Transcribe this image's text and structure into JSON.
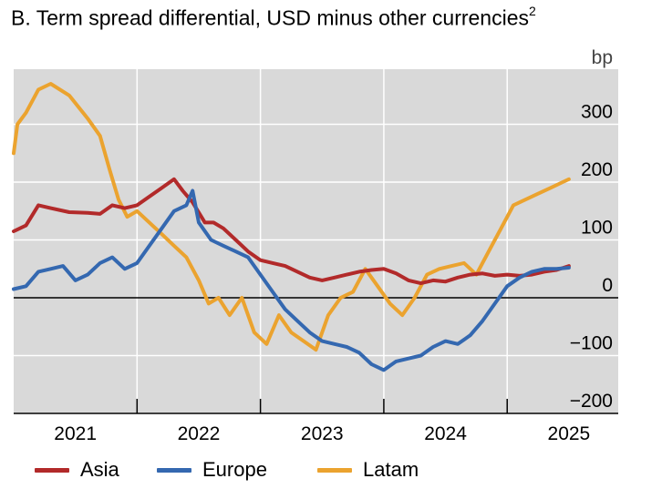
{
  "chart_data": {
    "type": "line",
    "title": "B. Term spread differential, USD minus other currencies",
    "title_superscript": "2",
    "ylabel": "bp",
    "ylim": [
      -200,
      380
    ],
    "yticks": [
      300,
      200,
      100,
      0,
      -100,
      -200
    ],
    "xlim": [
      2020.5,
      2025.4
    ],
    "xticks": [
      2021,
      2022,
      2023,
      2024,
      2025
    ],
    "grid": true,
    "legend_position": "bottom",
    "series": [
      {
        "name": "Asia",
        "color": "#b22a2a",
        "x": [
          2020.5,
          2020.6,
          2020.7,
          2020.8,
          2020.95,
          2021.1,
          2021.2,
          2021.3,
          2021.4,
          2021.5,
          2021.6,
          2021.7,
          2021.8,
          2021.87,
          2021.95,
          2022.05,
          2022.12,
          2022.2,
          2022.3,
          2022.4,
          2022.5,
          2022.6,
          2022.7,
          2022.8,
          2022.9,
          2023.0,
          2023.1,
          2023.2,
          2023.3,
          2023.4,
          2023.5,
          2023.6,
          2023.7,
          2023.8,
          2023.9,
          2024.0,
          2024.1,
          2024.2,
          2024.3,
          2024.4,
          2024.5,
          2024.6,
          2024.7,
          2024.8,
          2024.9,
          2025.0
        ],
        "values": [
          115,
          125,
          160,
          155,
          148,
          147,
          145,
          160,
          155,
          160,
          175,
          190,
          205,
          185,
          165,
          130,
          130,
          120,
          100,
          80,
          65,
          60,
          55,
          45,
          35,
          30,
          35,
          40,
          45,
          48,
          50,
          42,
          30,
          25,
          30,
          28,
          35,
          40,
          42,
          38,
          40,
          38,
          40,
          45,
          48,
          55
        ]
      },
      {
        "name": "Europe",
        "color": "#3468b0",
        "x": [
          2020.5,
          2020.6,
          2020.7,
          2020.8,
          2020.9,
          2021.0,
          2021.1,
          2021.2,
          2021.3,
          2021.4,
          2021.5,
          2021.6,
          2021.7,
          2021.8,
          2021.9,
          2021.95,
          2022.0,
          2022.1,
          2022.2,
          2022.3,
          2022.4,
          2022.5,
          2022.6,
          2022.7,
          2022.8,
          2022.9,
          2023.0,
          2023.1,
          2023.2,
          2023.3,
          2023.4,
          2023.5,
          2023.6,
          2023.7,
          2023.8,
          2023.9,
          2024.0,
          2024.1,
          2024.2,
          2024.3,
          2024.4,
          2024.5,
          2024.6,
          2024.7,
          2024.8,
          2024.9,
          2025.0
        ],
        "values": [
          15,
          20,
          45,
          50,
          55,
          30,
          40,
          60,
          70,
          50,
          60,
          90,
          120,
          150,
          160,
          185,
          130,
          100,
          90,
          80,
          70,
          40,
          10,
          -20,
          -40,
          -60,
          -75,
          -80,
          -85,
          -95,
          -115,
          -125,
          -110,
          -105,
          -100,
          -85,
          -75,
          -80,
          -65,
          -40,
          -10,
          20,
          35,
          45,
          50,
          50,
          52
        ]
      },
      {
        "name": "Latam",
        "color": "#eba32f",
        "x": [
          2020.5,
          2020.53,
          2020.6,
          2020.7,
          2020.8,
          2020.95,
          2021.1,
          2021.2,
          2021.28,
          2021.35,
          2021.42,
          2021.5,
          2021.6,
          2021.7,
          2021.8,
          2021.9,
          2022.0,
          2022.08,
          2022.16,
          2022.25,
          2022.35,
          2022.45,
          2022.55,
          2022.65,
          2022.75,
          2022.85,
          2022.95,
          2023.05,
          2023.15,
          2023.25,
          2023.35,
          2023.45,
          2023.55,
          2023.65,
          2023.75,
          2023.85,
          2023.95,
          2024.05,
          2024.15,
          2024.25,
          2024.35,
          2024.45,
          2024.55,
          2024.65,
          2024.75,
          2024.85,
          2024.95,
          2025.0
        ],
        "values": [
          250,
          300,
          320,
          360,
          370,
          350,
          310,
          280,
          220,
          170,
          140,
          150,
          130,
          110,
          90,
          70,
          30,
          -10,
          0,
          -30,
          0,
          -60,
          -80,
          -30,
          -60,
          -75,
          -90,
          -30,
          0,
          10,
          50,
          20,
          -10,
          -30,
          0,
          40,
          50,
          55,
          60,
          40,
          80,
          120,
          160,
          170,
          180,
          190,
          200,
          205
        ]
      }
    ]
  }
}
